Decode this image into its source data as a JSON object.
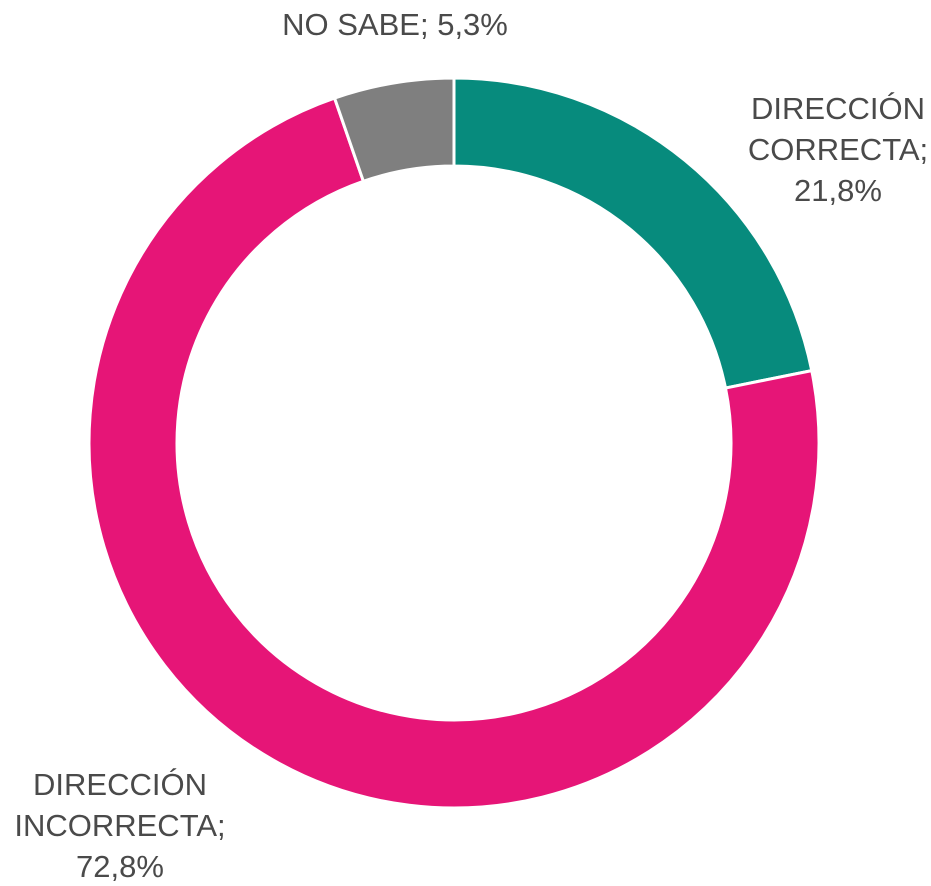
{
  "chart_data": {
    "type": "donut",
    "categories": [
      "DIRECCIÓN CORRECTA",
      "DIRECCIÓN INCORRECTA",
      "NO SABE"
    ],
    "values": [
      21.8,
      72.8,
      5.3
    ],
    "value_labels": [
      "21,8%",
      "72,8%",
      "5,3%"
    ],
    "separator": ";",
    "colors": [
      "#078b7d",
      "#e61577",
      "#7f7f7f"
    ]
  }
}
